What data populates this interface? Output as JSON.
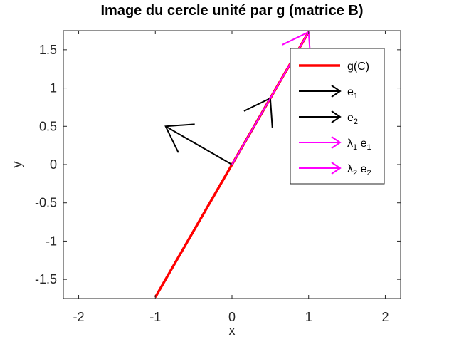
{
  "chart_data": {
    "type": "line",
    "title": "Image du cercle unité par g (matrice B)",
    "xlabel": "x",
    "ylabel": "y",
    "xlim": [
      -2.2,
      2.2
    ],
    "ylim": [
      -1.75,
      1.75
    ],
    "xticks": [
      -2,
      -1,
      0,
      1,
      2
    ],
    "xtick_labels": [
      "-2",
      "-1",
      "0",
      "1",
      "2"
    ],
    "yticks": [
      -1.5,
      -1,
      -0.5,
      0,
      0.5,
      1,
      1.5
    ],
    "ytick_labels": [
      "-1.5",
      "-1",
      "-0.5",
      "0",
      "0.5",
      "1",
      "1.5"
    ],
    "grid": false,
    "legend_position": "top-right",
    "series": [
      {
        "name": "g(C)",
        "label_base": "g(C)",
        "label_sub": "",
        "label_tail": "",
        "kind": "line",
        "color": "#ff0000",
        "x": [
          -1.0,
          1.0
        ],
        "y": [
          -1.732,
          1.732
        ]
      },
      {
        "name": "e1",
        "label_base": "e",
        "label_sub": "1",
        "label_tail": "",
        "kind": "arrow",
        "color": "#000000",
        "x": [
          0,
          0.5
        ],
        "y": [
          0,
          0.866
        ]
      },
      {
        "name": "e2",
        "label_base": "e",
        "label_sub": "2",
        "label_tail": "",
        "kind": "arrow",
        "color": "#000000",
        "x": [
          0,
          -0.866
        ],
        "y": [
          0,
          0.5
        ]
      },
      {
        "name": "λ1 e1",
        "label_base": "λ",
        "label_sub": "1",
        "label_tail": " e₁",
        "kind": "arrow",
        "color": "#ff00ff",
        "x": [
          0,
          1.0
        ],
        "y": [
          0,
          1.732
        ]
      },
      {
        "name": "λ2 e2",
        "label_base": "λ",
        "label_sub": "2",
        "label_tail": " e₂",
        "kind": "arrow",
        "color": "#ff00ff",
        "x": [
          0,
          0
        ],
        "y": [
          0,
          0
        ]
      }
    ]
  }
}
